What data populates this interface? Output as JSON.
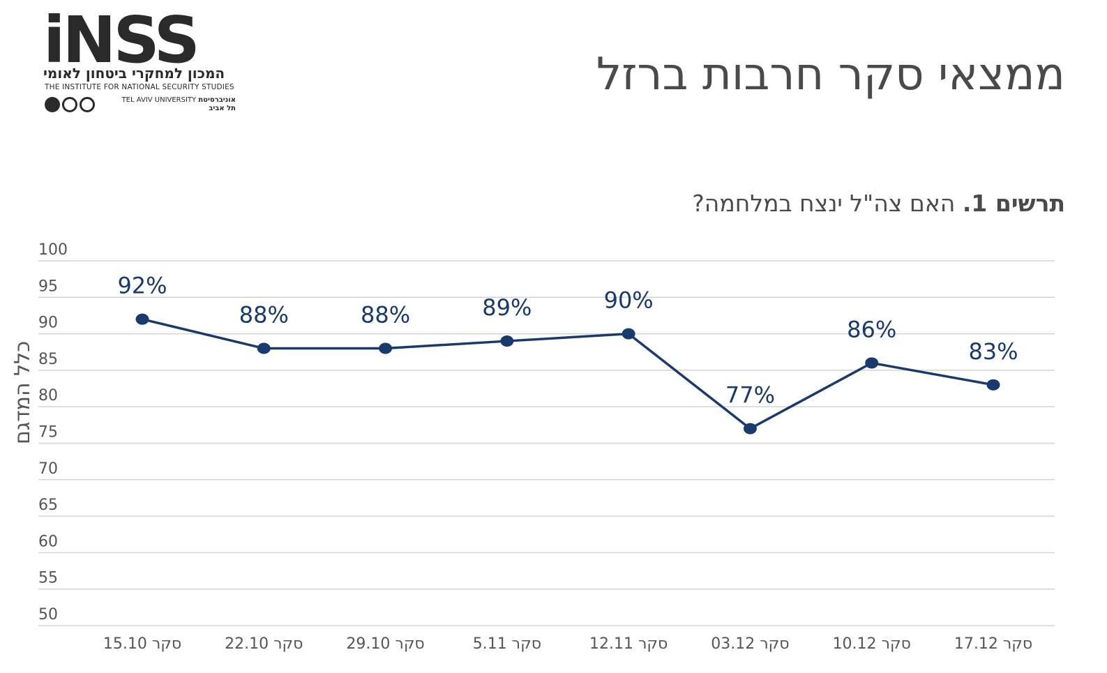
{
  "logo": {
    "mark": "iNSS",
    "hebrew_name": "המכון למחקרי ביטחון לאומי",
    "english_name": "THE INSTITUTE FOR NATIONAL SECURITY STUDIES",
    "university_en": "TEL AVIV UNIVERSITY",
    "university_he_1": "אוניברסיטת",
    "university_he_2": "תל אביב"
  },
  "header": {
    "title": "ממצאי סקר חרבות ברזל"
  },
  "figure": {
    "label": "תרשים 1.",
    "question": "האם צה\"ל ינצח במלחמה?"
  },
  "colors": {
    "series": "#1a3a6e",
    "grid": "#d4d4d4",
    "text": "#555555"
  },
  "chart_data": {
    "type": "line",
    "ylabel": "כלל המדגם",
    "ylim": [
      50,
      100
    ],
    "yticks": [
      100,
      95,
      90,
      85,
      80,
      75,
      70,
      65,
      60,
      55,
      50
    ],
    "grid": true,
    "categories": [
      "סקר 15.10",
      "סקר 22.10",
      "סקר 29.10",
      "סקר 5.11",
      "סקר 12.11",
      "סקר 03.12",
      "סקר 10.12",
      "סקר 17.12"
    ],
    "values": [
      92,
      88,
      88,
      89,
      90,
      77,
      86,
      83
    ],
    "data_labels": [
      "92%",
      "88%",
      "88%",
      "89%",
      "90%",
      "77%",
      "86%",
      "83%"
    ]
  }
}
